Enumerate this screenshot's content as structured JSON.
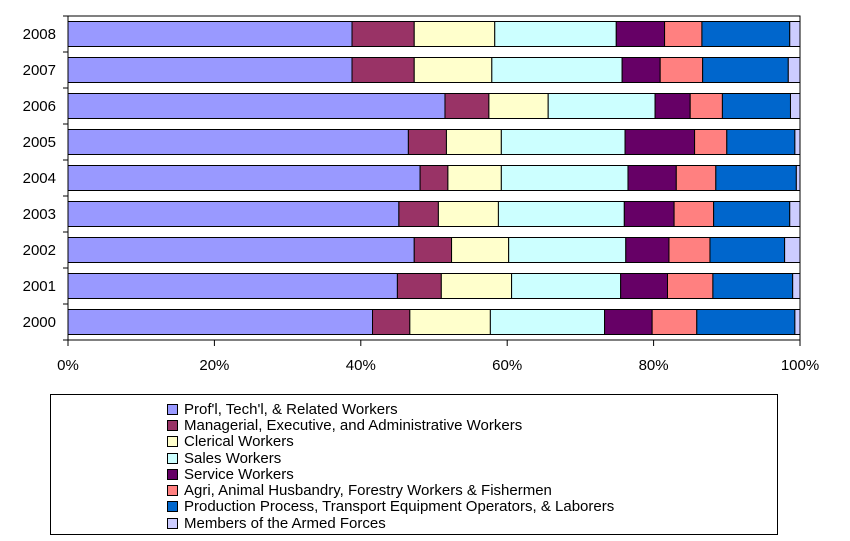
{
  "chart_data": {
    "type": "bar",
    "orientation": "horizontal",
    "stacked": "percent",
    "categories": [
      "2008",
      "2007",
      "2006",
      "2005",
      "2004",
      "2003",
      "2002",
      "2001",
      "2000"
    ],
    "series": [
      {
        "name": "Prof'l, Tech'l, & Related Workers",
        "color": "#9999ff",
        "values": [
          38.8,
          38.8,
          51.5,
          46.5,
          48.1,
          45.2,
          47.3,
          45.0,
          41.6
        ]
      },
      {
        "name": "Managerial, Executive, and Administrative Workers",
        "color": "#993366",
        "values": [
          8.5,
          8.5,
          6.0,
          5.2,
          3.8,
          5.4,
          5.1,
          6.0,
          5.1
        ]
      },
      {
        "name": "Clerical Workers",
        "color": "#ffffcc",
        "values": [
          11.0,
          10.6,
          8.1,
          7.5,
          7.3,
          8.2,
          7.8,
          9.6,
          11.0
        ]
      },
      {
        "name": "Sales Workers",
        "color": "#ccffff",
        "values": [
          16.6,
          17.8,
          14.6,
          16.9,
          17.3,
          17.2,
          16.0,
          14.9,
          15.6
        ]
      },
      {
        "name": "Service Workers",
        "color": "#660066",
        "values": [
          6.6,
          5.2,
          4.8,
          9.5,
          6.6,
          6.8,
          5.9,
          6.4,
          6.5
        ]
      },
      {
        "name": "Agri, Animal Husbandry, Forestry Workers & Fishermen",
        "color": "#ff8080",
        "values": [
          5.1,
          5.8,
          4.4,
          4.4,
          5.4,
          5.4,
          5.6,
          6.2,
          6.1
        ]
      },
      {
        "name": "Production Process, Transport Equipment Operators, & Laborers",
        "color": "#0066cc",
        "values": [
          12.0,
          11.7,
          9.3,
          9.3,
          11.0,
          10.4,
          10.2,
          10.9,
          13.4
        ]
      },
      {
        "name": "Members of the Armed Forces",
        "color": "#ccccff",
        "values": [
          1.4,
          1.6,
          1.3,
          0.7,
          0.5,
          1.4,
          2.1,
          1.0,
          0.7
        ]
      }
    ],
    "xlim": [
      0,
      100
    ],
    "x_ticks": [
      "0%",
      "20%",
      "40%",
      "60%",
      "80%",
      "100%"
    ],
    "title": "",
    "xlabel": "",
    "ylabel": "",
    "grid": false,
    "legend_position": "bottom"
  }
}
